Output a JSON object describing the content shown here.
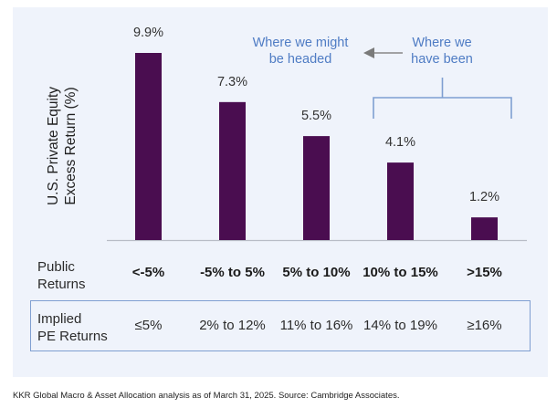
{
  "chart_data": {
    "type": "bar",
    "title": "",
    "ylabel_lines": [
      "U.S. Private Equity",
      "Excess Return (%)"
    ],
    "xlabel": "Public Returns",
    "categories": [
      "<-5%",
      "-5% to 5%",
      "5% to 10%",
      "10% to 15%",
      ">15%"
    ],
    "values": [
      9.9,
      7.3,
      5.5,
      4.1,
      1.2
    ],
    "data_labels": [
      "9.9%",
      "7.3%",
      "5.5%",
      "4.1%",
      "1.2%"
    ],
    "ylim": [
      0,
      9.9
    ],
    "grid": false,
    "bar_color": "#4a0d50",
    "annotations": {
      "future_label": [
        "Where we might",
        "be headed"
      ],
      "past_label": [
        "Where we",
        "have been"
      ],
      "past_bracket_categories": [
        "10% to 15%",
        ">15%"
      ],
      "arrow_direction": "left",
      "color": "#4f7cc4"
    }
  },
  "table": {
    "public_returns_label": [
      "Public",
      "Returns"
    ],
    "implied_pe_label": [
      "Implied",
      "PE Returns"
    ],
    "implied_pe_values": [
      "≤5%",
      "2% to 12%",
      "11% to 16%",
      "14% to 19%",
      "≥16%"
    ]
  },
  "footer": "KKR Global Macro & Asset Allocation analysis as of March 31, 2025. Source: Cambridge Associates."
}
